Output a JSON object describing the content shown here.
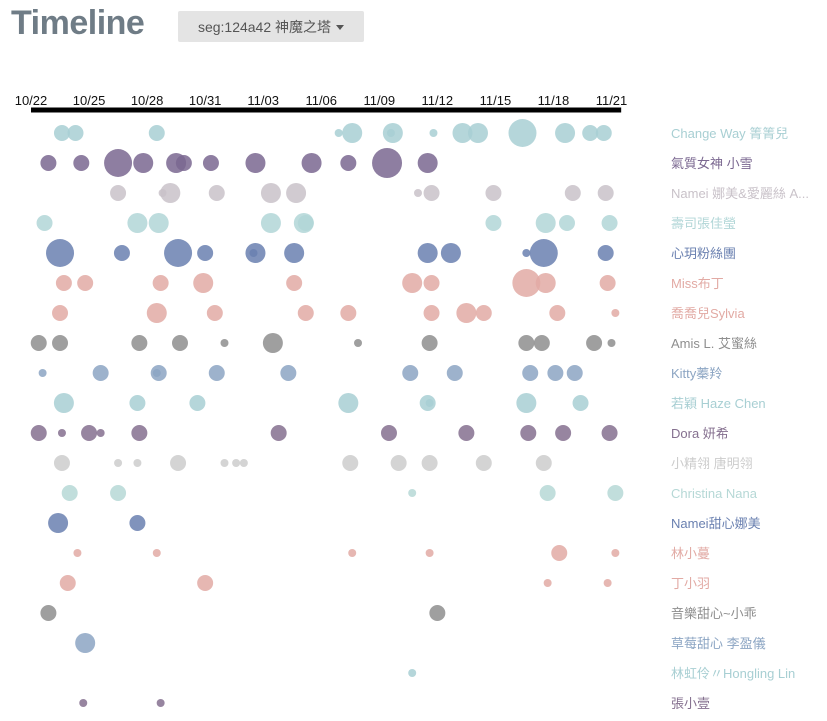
{
  "header": {
    "title": "Timeline",
    "segment_selector": "seg:124a42 神魔之塔"
  },
  "chart_data": {
    "type": "scatter",
    "x_axis": {
      "ticks": [
        "10/22",
        "10/25",
        "10/28",
        "10/31",
        "11/03",
        "11/06",
        "11/09",
        "11/12",
        "11/15",
        "11/18",
        "11/21"
      ],
      "range_days": [
        0,
        30.5
      ]
    },
    "series": [
      {
        "name": "Change Way 箐箐兒",
        "color": "#a8cfd3",
        "points": [
          [
            1.6,
            2
          ],
          [
            2.3,
            2
          ],
          [
            6.5,
            2
          ],
          [
            15.9,
            1
          ],
          [
            16.6,
            3
          ],
          [
            18.7,
            3
          ],
          [
            18.6,
            1
          ],
          [
            20.8,
            1
          ],
          [
            22.3,
            3
          ],
          [
            23.1,
            3
          ],
          [
            25.4,
            4
          ],
          [
            27.6,
            3
          ],
          [
            28.9,
            2
          ],
          [
            29.6,
            2
          ]
        ]
      },
      {
        "name": "氣質女神 小雪",
        "color": "#7a6790",
        "points": [
          [
            0.9,
            2
          ],
          [
            2.6,
            2
          ],
          [
            4.5,
            4
          ],
          [
            5.8,
            3
          ],
          [
            7.5,
            3
          ],
          [
            7.9,
            2
          ],
          [
            9.3,
            2
          ],
          [
            11.6,
            3
          ],
          [
            14.5,
            3
          ],
          [
            16.4,
            2
          ],
          [
            18.4,
            5
          ],
          [
            20.5,
            3
          ]
        ]
      },
      {
        "name": "Namei 娜美&愛麗絲 A...",
        "color": "#c9c2c9",
        "points": [
          [
            4.5,
            2
          ],
          [
            6.8,
            1
          ],
          [
            7.2,
            3
          ],
          [
            9.6,
            2
          ],
          [
            12.4,
            3
          ],
          [
            13.7,
            3
          ],
          [
            20,
            1
          ],
          [
            20.7,
            2
          ],
          [
            23.9,
            2
          ],
          [
            28,
            2
          ],
          [
            29.7,
            2
          ]
        ]
      },
      {
        "name": "壽司張佳瑩",
        "color": "#b1d6d7",
        "points": [
          [
            0.7,
            2
          ],
          [
            5.5,
            3
          ],
          [
            6.6,
            3
          ],
          [
            12.4,
            3
          ],
          [
            14.2,
            2
          ],
          [
            14.1,
            3
          ],
          [
            23.9,
            2
          ],
          [
            26.6,
            3
          ],
          [
            27.7,
            2
          ],
          [
            29.9,
            2
          ]
        ]
      },
      {
        "name": "心玥粉絲團",
        "color": "#6a80b0",
        "points": [
          [
            1.5,
            4
          ],
          [
            4.7,
            2
          ],
          [
            7.6,
            4
          ],
          [
            9,
            2
          ],
          [
            11.5,
            1
          ],
          [
            11.6,
            3
          ],
          [
            13.6,
            3
          ],
          [
            20.5,
            3
          ],
          [
            21.7,
            3
          ],
          [
            25.6,
            1
          ],
          [
            26.5,
            4
          ],
          [
            29.7,
            2
          ]
        ]
      },
      {
        "name": "Miss布丁",
        "color": "#e2aaa4",
        "points": [
          [
            1.7,
            2
          ],
          [
            2.8,
            2
          ],
          [
            6.7,
            2
          ],
          [
            8.9,
            3
          ],
          [
            13.6,
            2
          ],
          [
            19.7,
            3
          ],
          [
            20.7,
            2
          ],
          [
            25.6,
            4
          ],
          [
            26.6,
            3
          ],
          [
            29.8,
            2
          ]
        ]
      },
      {
        "name": "喬喬兒Sylvia",
        "color": "#e2aaa4",
        "points": [
          [
            1.5,
            2
          ],
          [
            6.5,
            3
          ],
          [
            9.5,
            2
          ],
          [
            14.2,
            2
          ],
          [
            16.4,
            2
          ],
          [
            20.7,
            2
          ],
          [
            22.5,
            3
          ],
          [
            23.4,
            2
          ],
          [
            27.2,
            2
          ],
          [
            30.2,
            1
          ]
        ]
      },
      {
        "name": "Amis L. 艾蜜絲",
        "color": "#8e8e8e",
        "points": [
          [
            0.4,
            2
          ],
          [
            1.5,
            2
          ],
          [
            5.6,
            2
          ],
          [
            7.7,
            2
          ],
          [
            10,
            1
          ],
          [
            12.5,
            3
          ],
          [
            16.9,
            1
          ],
          [
            20.6,
            2
          ],
          [
            25.6,
            2
          ],
          [
            26.4,
            2
          ],
          [
            29.1,
            2
          ],
          [
            30,
            1
          ]
        ]
      },
      {
        "name": "Kitty蓁羚",
        "color": "#8ca5c3",
        "points": [
          [
            0.6,
            1
          ],
          [
            3.6,
            2
          ],
          [
            6.5,
            1
          ],
          [
            6.6,
            2
          ],
          [
            9.6,
            2
          ],
          [
            13.3,
            2
          ],
          [
            19.6,
            2
          ],
          [
            21.9,
            2
          ],
          [
            25.8,
            2
          ],
          [
            27.1,
            2
          ],
          [
            28.1,
            2
          ]
        ]
      },
      {
        "name": "若穎 Haze Chen",
        "color": "#a8cfd3",
        "points": [
          [
            1.7,
            3
          ],
          [
            5.5,
            2
          ],
          [
            8.6,
            2
          ],
          [
            16.4,
            3
          ],
          [
            20.6,
            1
          ],
          [
            20.5,
            2
          ],
          [
            25.6,
            3
          ],
          [
            28.4,
            2
          ]
        ]
      },
      {
        "name": "Dora 妍希",
        "color": "#85708f",
        "points": [
          [
            0.4,
            2
          ],
          [
            1.6,
            1
          ],
          [
            3,
            2
          ],
          [
            3.6,
            1
          ],
          [
            5.6,
            2
          ],
          [
            12.8,
            2
          ],
          [
            18.5,
            2
          ],
          [
            22.5,
            2
          ],
          [
            25.7,
            2
          ],
          [
            27.5,
            2
          ],
          [
            29.9,
            2
          ]
        ]
      },
      {
        "name": "小精翎 唐明翎",
        "color": "#cccccc",
        "points": [
          [
            1.6,
            2
          ],
          [
            4.5,
            1
          ],
          [
            5.5,
            1
          ],
          [
            7.6,
            2
          ],
          [
            10,
            1
          ],
          [
            10.6,
            1
          ],
          [
            11,
            1
          ],
          [
            16.5,
            2
          ],
          [
            19,
            2
          ],
          [
            20.6,
            2
          ],
          [
            23.4,
            2
          ],
          [
            26.5,
            2
          ]
        ]
      },
      {
        "name": "Christina Nana",
        "color": "#b6d8d6",
        "points": [
          [
            2,
            2
          ],
          [
            4.5,
            2
          ],
          [
            19.7,
            1
          ],
          [
            26.7,
            2
          ],
          [
            30.2,
            2
          ]
        ]
      },
      {
        "name": "Namei甜心娜美",
        "color": "#6a80b0",
        "points": [
          [
            1.4,
            3
          ],
          [
            5.5,
            2
          ]
        ]
      },
      {
        "name": "林小蔓",
        "color": "#e2aaa4",
        "points": [
          [
            2.4,
            1
          ],
          [
            6.5,
            1
          ],
          [
            16.6,
            1
          ],
          [
            20.6,
            1
          ],
          [
            27.3,
            2
          ],
          [
            30.2,
            1
          ]
        ]
      },
      {
        "name": "丁小羽",
        "color": "#e2aaa4",
        "points": [
          [
            1.9,
            2
          ],
          [
            9,
            2
          ],
          [
            26.7,
            1
          ],
          [
            29.8,
            1
          ]
        ]
      },
      {
        "name": "音樂甜心~小乖",
        "color": "#8e8e8e",
        "points": [
          [
            0.9,
            2
          ],
          [
            21,
            2
          ]
        ]
      },
      {
        "name": "草莓甜心 李盈儀",
        "color": "#8ca5c3",
        "points": [
          [
            2.8,
            3
          ]
        ]
      },
      {
        "name": "林虹伶〃Hongling Lin",
        "color": "#a8cfd3",
        "points": [
          [
            19.7,
            1
          ]
        ]
      },
      {
        "name": "張小壹",
        "color": "#85708f",
        "points": [
          [
            2.7,
            1
          ],
          [
            6.7,
            1
          ]
        ]
      }
    ]
  }
}
